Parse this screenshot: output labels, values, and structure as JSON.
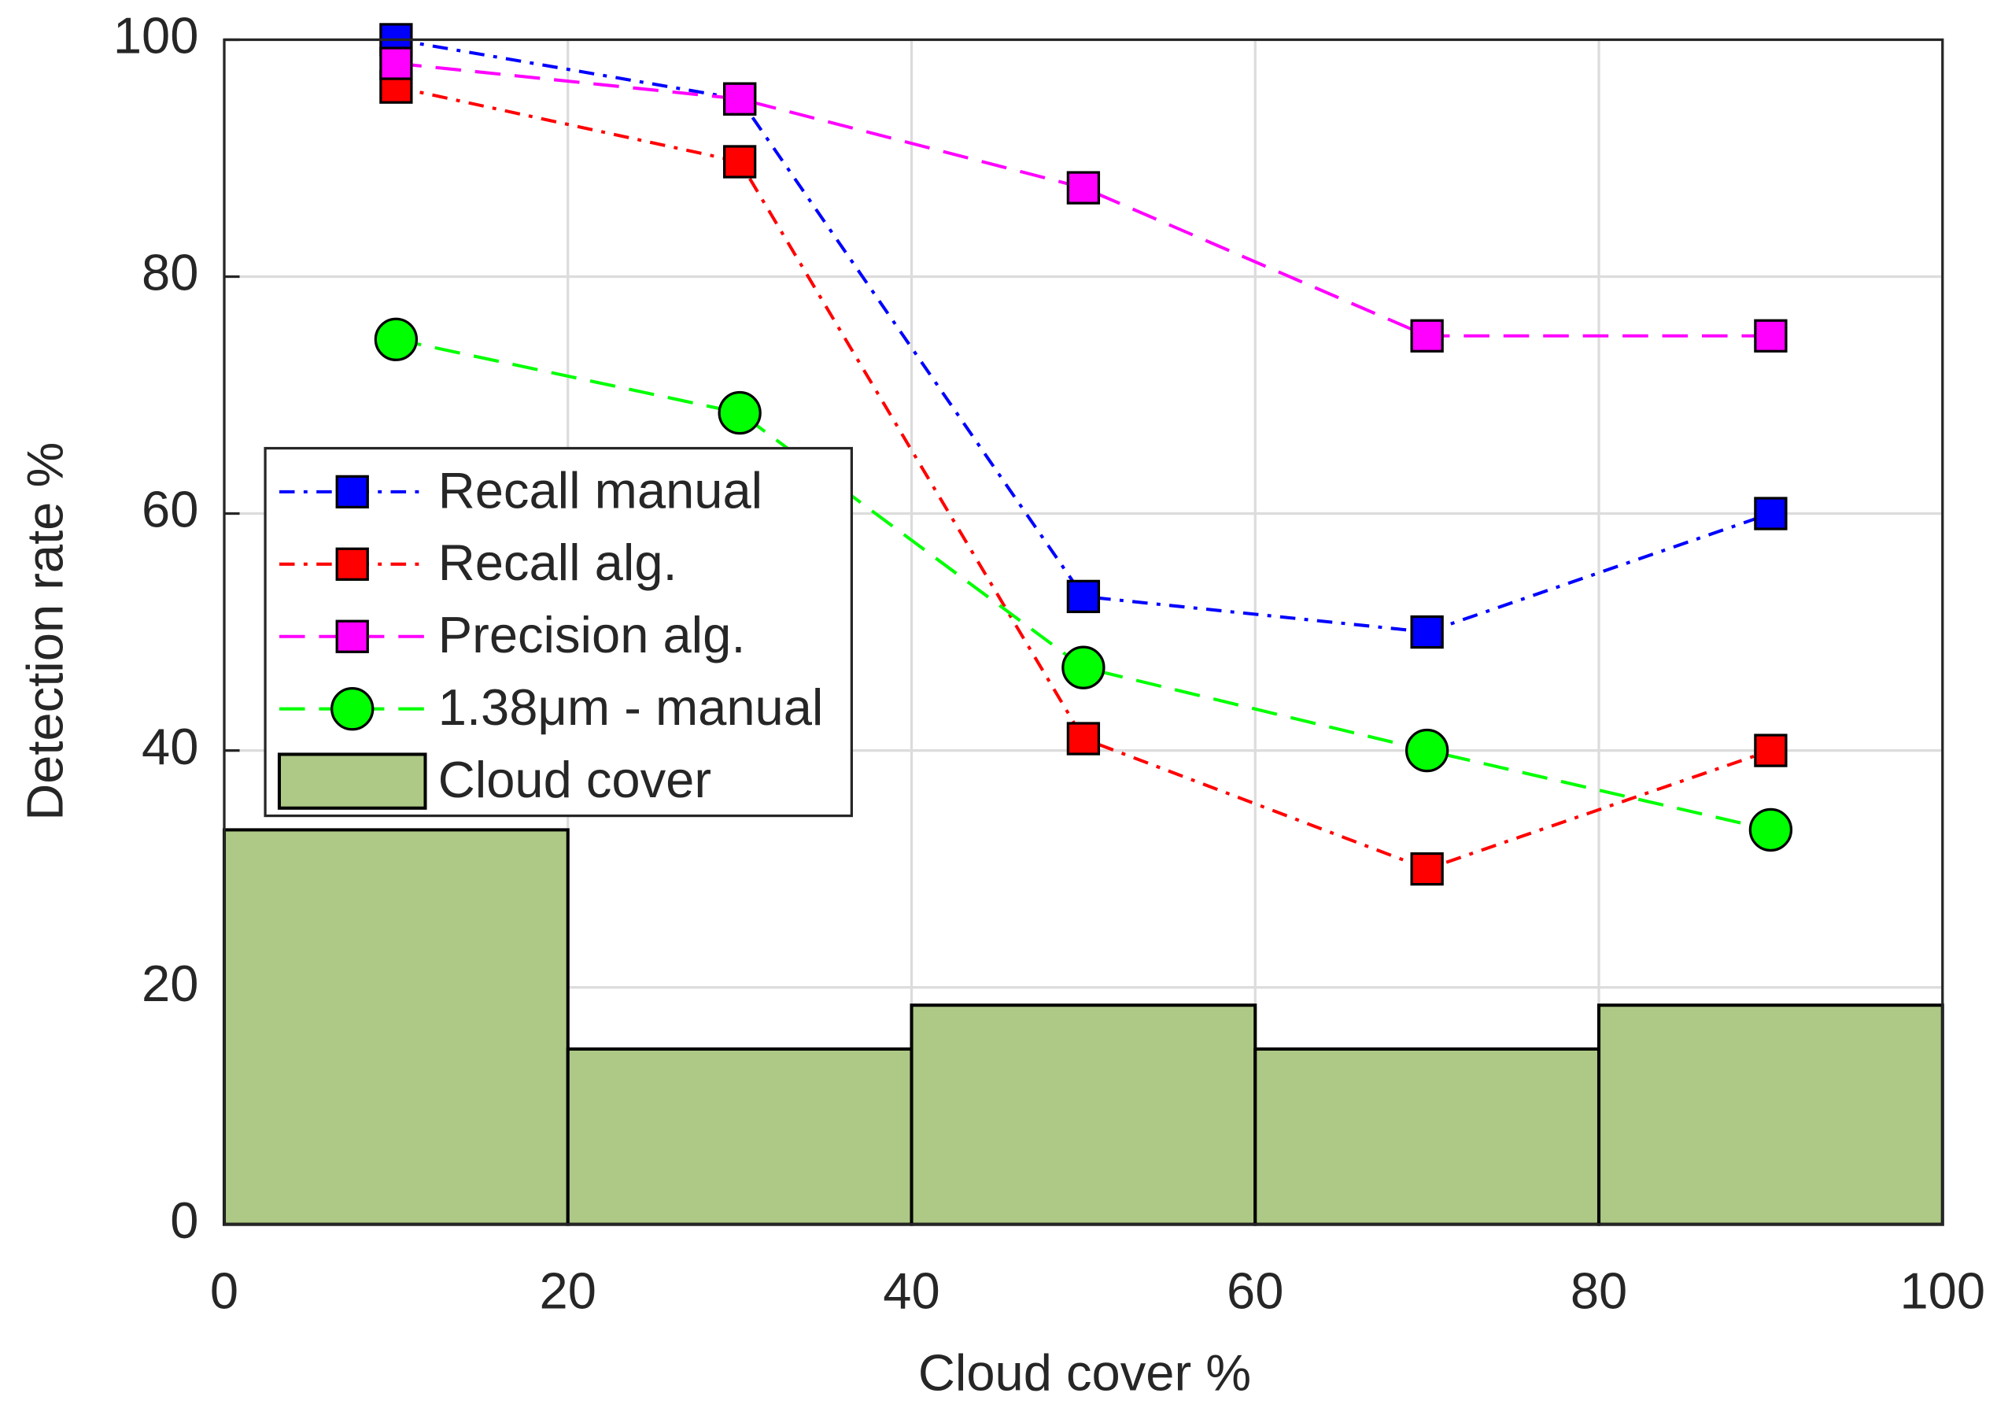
{
  "chart_data": {
    "type": "line",
    "xlabel": "Cloud cover %",
    "ylabel": "Detection rate %",
    "x": [
      10,
      30,
      50,
      70,
      90
    ],
    "series": [
      {
        "name": "Recall manual",
        "color": "#0000ff",
        "marker": "square",
        "dash": "12,7,3,7",
        "values": [
          100,
          95,
          53,
          50,
          60
        ]
      },
      {
        "name": "Recall alg.",
        "color": "#ff0000",
        "marker": "square",
        "dash": "12,7,3,7",
        "values": [
          96,
          89.7,
          41,
          30,
          40
        ]
      },
      {
        "name": "Precision alg.",
        "color": "#ff00ff",
        "marker": "square",
        "dash": "20,11",
        "values": [
          98,
          95,
          87.5,
          75,
          75
        ]
      },
      {
        "name": "1.38μm - manual",
        "color": "#00ff00",
        "marker": "circle",
        "dash": "20,11",
        "values": [
          74.7,
          68.5,
          47,
          40,
          33.3
        ]
      }
    ],
    "histogram": {
      "name": "Cloud cover",
      "color": "#adc985",
      "bins": [
        0,
        20,
        40,
        60,
        80,
        100
      ],
      "counts": [
        33.3,
        14.8,
        18.5,
        14.8,
        18.5
      ]
    },
    "xlim": [
      0,
      100
    ],
    "ylim": [
      0,
      100
    ],
    "xticks": [
      0,
      20,
      40,
      60,
      80,
      100
    ],
    "yticks": [
      0,
      20,
      40,
      60,
      80,
      100
    ],
    "grid": true,
    "legend": "upper left"
  }
}
